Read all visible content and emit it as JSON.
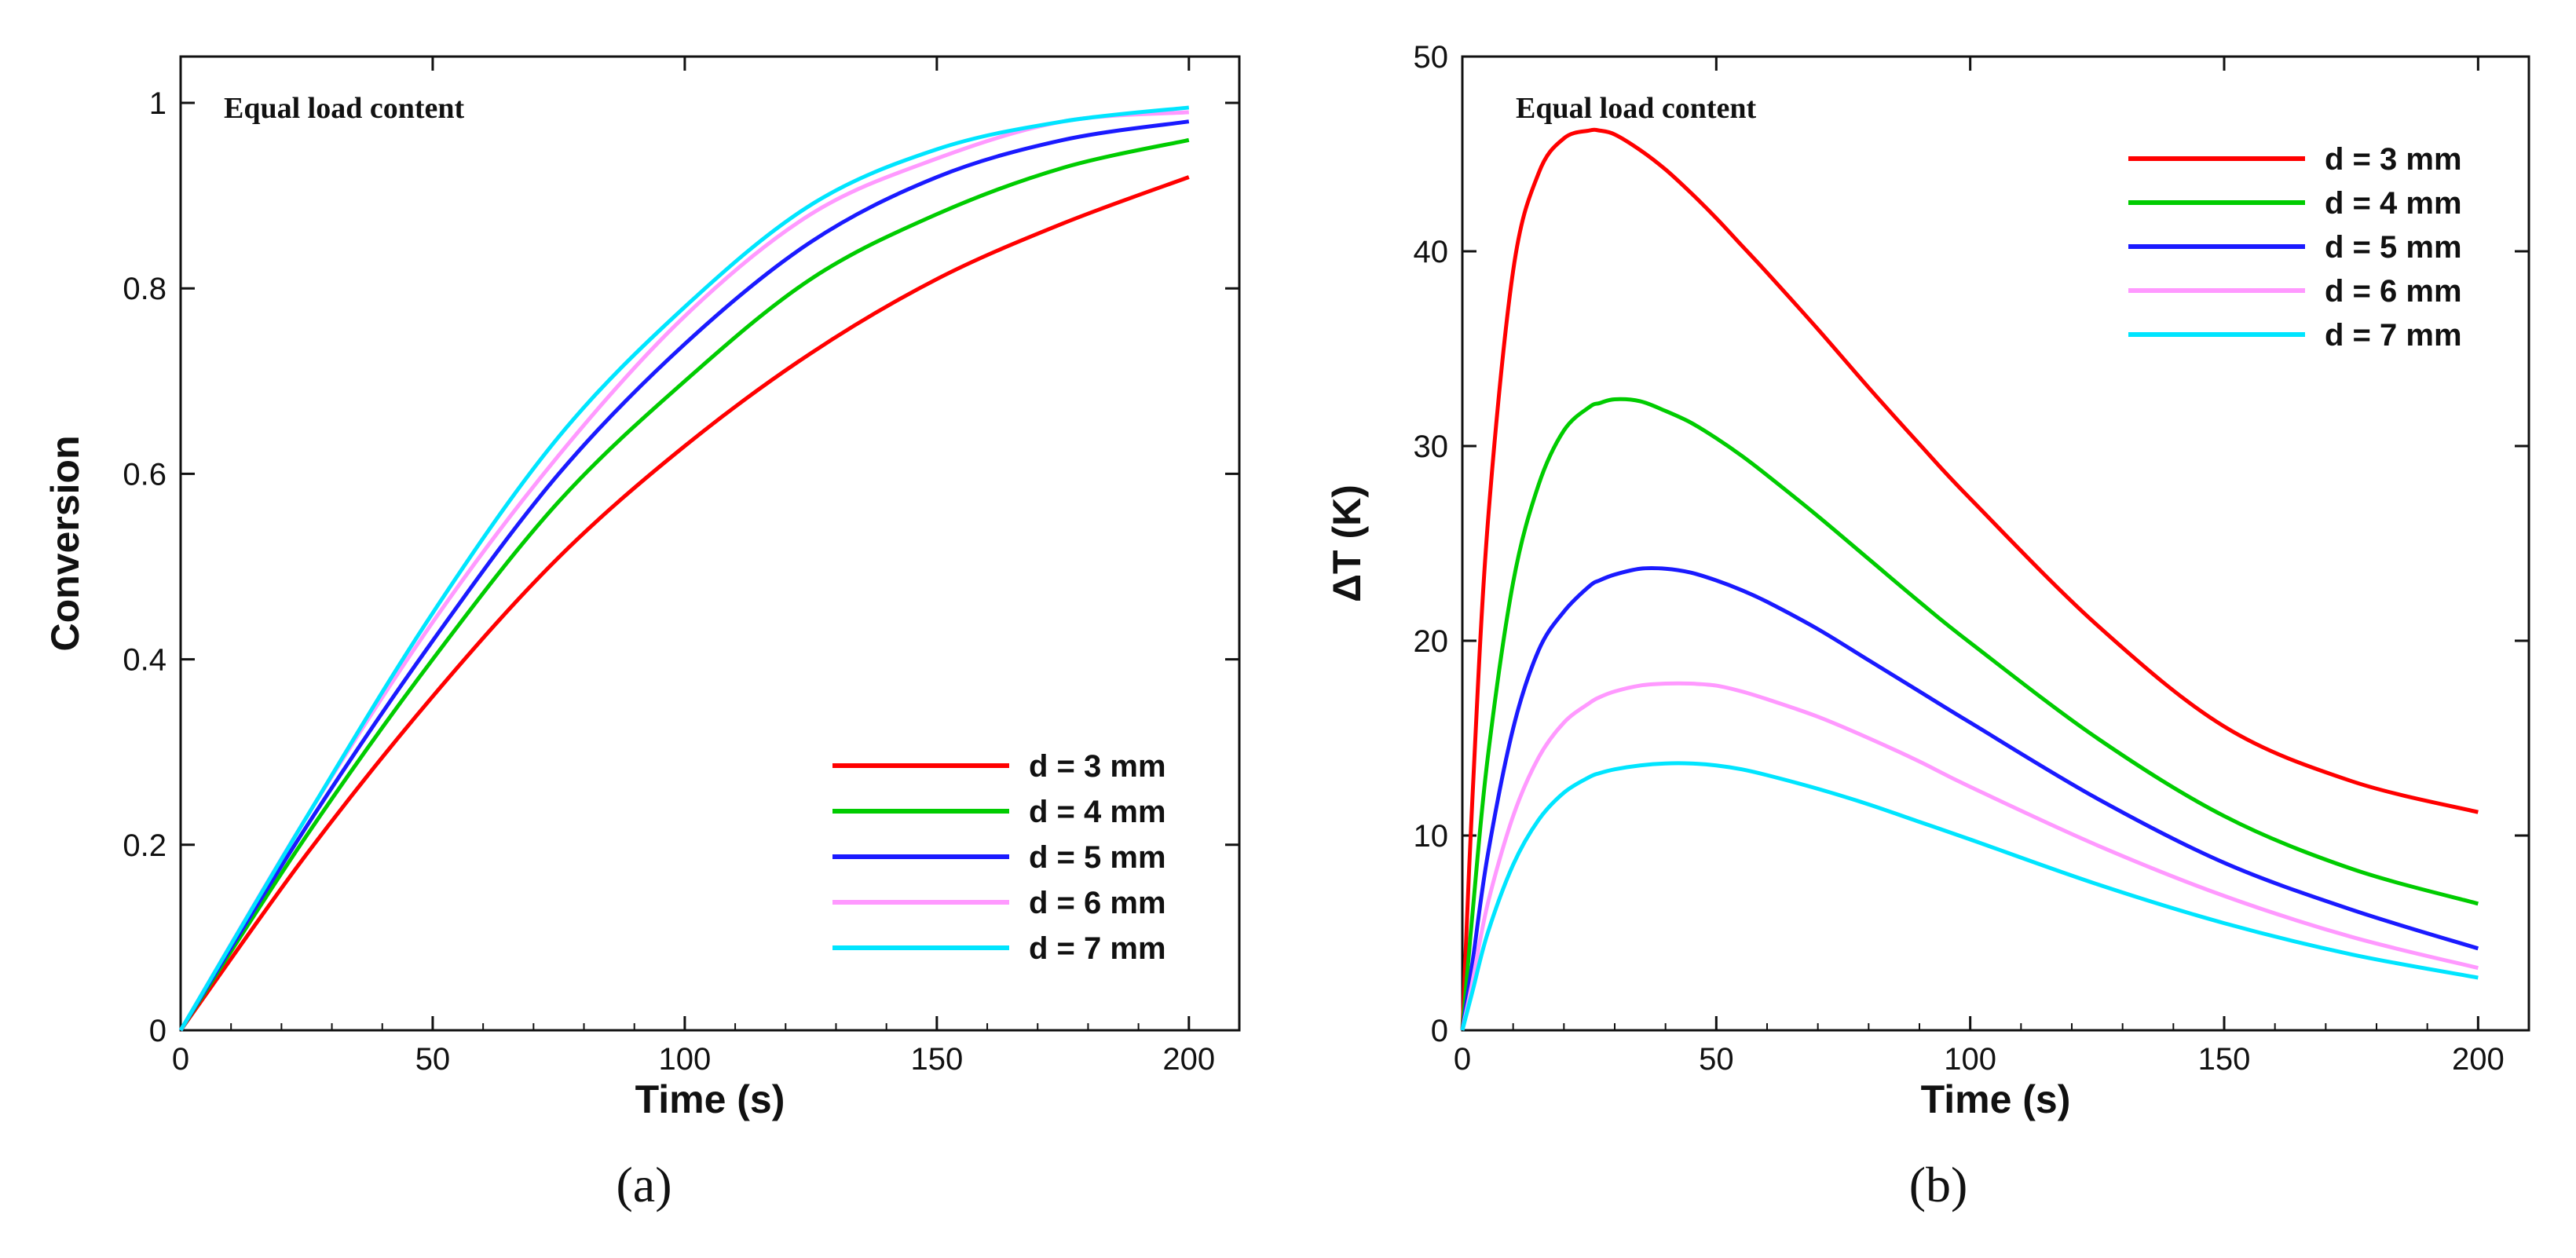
{
  "colors": {
    "d3": "#ff0000",
    "d4": "#00cc00",
    "d5": "#1a1aff",
    "d6": "#ff99ff",
    "d7": "#00e5ff",
    "axis": "#111111"
  },
  "chart_data": [
    {
      "id": "a",
      "type": "line",
      "caption": "(a)",
      "annotation": "Equal load content",
      "xlabel": "Time (s)",
      "ylabel": "Conversion",
      "xlim": [
        0,
        210
      ],
      "ylim": [
        0,
        1.05
      ],
      "xticks": [
        0,
        50,
        100,
        150,
        200
      ],
      "xtick_labels": [
        "0",
        "50",
        "100",
        "150",
        "200"
      ],
      "yticks": [
        0,
        0.2,
        0.4,
        0.6,
        0.8,
        1
      ],
      "ytick_labels": [
        "0",
        "0.2",
        "0.4",
        "0.6",
        "0.8",
        "1"
      ],
      "legend_position": "bottom-right",
      "x": [
        0,
        25,
        50,
        75,
        100,
        125,
        150,
        175,
        200
      ],
      "series": [
        {
          "name": "d = 3 mm",
          "color": "#ff0000",
          "values": [
            0,
            0.19,
            0.36,
            0.51,
            0.63,
            0.73,
            0.81,
            0.87,
            0.92
          ]
        },
        {
          "name": "d = 4 mm",
          "color": "#00cc00",
          "values": [
            0,
            0.21,
            0.4,
            0.57,
            0.7,
            0.81,
            0.88,
            0.93,
            0.96
          ]
        },
        {
          "name": "d = 5 mm",
          "color": "#1a1aff",
          "values": [
            0,
            0.22,
            0.42,
            0.6,
            0.74,
            0.85,
            0.92,
            0.96,
            0.98
          ]
        },
        {
          "name": "d = 6 mm",
          "color": "#ff99ff",
          "values": [
            0,
            0.23,
            0.44,
            0.62,
            0.77,
            0.88,
            0.94,
            0.98,
            0.99
          ]
        },
        {
          "name": "d = 7 mm",
          "color": "#00e5ff",
          "values": [
            0,
            0.23,
            0.45,
            0.64,
            0.78,
            0.89,
            0.95,
            0.98,
            0.995
          ]
        }
      ]
    },
    {
      "id": "b",
      "type": "line",
      "caption": "(b)",
      "annotation": "Equal load content",
      "xlabel": "Time (s)",
      "ylabel": "ΔT (K)",
      "xlim": [
        0,
        210
      ],
      "ylim": [
        0,
        50
      ],
      "xticks": [
        0,
        50,
        100,
        150,
        200
      ],
      "xtick_labels": [
        "0",
        "50",
        "100",
        "150",
        "200"
      ],
      "yticks": [
        0,
        10,
        20,
        30,
        40,
        50
      ],
      "ytick_labels": [
        "0",
        "10",
        "20",
        "30",
        "40",
        "50"
      ],
      "legend_position": "top-right",
      "x": [
        0,
        2,
        5,
        10,
        15,
        20,
        25,
        27,
        30,
        35,
        40,
        45,
        50,
        55,
        60,
        70,
        80,
        90,
        100,
        125,
        150,
        175,
        200
      ],
      "series": [
        {
          "name": "d = 3 mm",
          "color": "#ff0000",
          "values": [
            0,
            12,
            26,
            39,
            44,
            45.8,
            46.2,
            46.2,
            46.0,
            45.2,
            44.2,
            43.0,
            41.7,
            40.3,
            38.9,
            36.0,
            33.0,
            30.1,
            27.3,
            20.8,
            15.6,
            12.8,
            11.2
          ]
        },
        {
          "name": "d = 4 mm",
          "color": "#00cc00",
          "values": [
            0,
            6,
            14,
            23,
            28,
            30.8,
            32.0,
            32.2,
            32.4,
            32.3,
            31.8,
            31.2,
            30.4,
            29.5,
            28.5,
            26.4,
            24.2,
            22.0,
            19.9,
            15.0,
            11.0,
            8.3,
            6.5
          ]
        },
        {
          "name": "d = 5 mm",
          "color": "#1a1aff",
          "values": [
            0,
            3.5,
            9,
            15.5,
            19.5,
            21.5,
            22.8,
            23.1,
            23.4,
            23.7,
            23.7,
            23.5,
            23.1,
            22.6,
            22.0,
            20.6,
            19.0,
            17.4,
            15.8,
            11.9,
            8.6,
            6.2,
            4.2
          ]
        },
        {
          "name": "d = 6 mm",
          "color": "#ff99ff",
          "values": [
            0,
            2.5,
            6.5,
            11,
            14,
            15.8,
            16.8,
            17.1,
            17.4,
            17.7,
            17.8,
            17.8,
            17.7,
            17.4,
            17.0,
            16.1,
            15.0,
            13.8,
            12.5,
            9.5,
            6.9,
            4.8,
            3.2
          ]
        },
        {
          "name": "d = 7 mm",
          "color": "#00e5ff",
          "values": [
            0,
            2,
            5,
            8.5,
            10.8,
            12.2,
            13.0,
            13.2,
            13.4,
            13.6,
            13.7,
            13.7,
            13.6,
            13.4,
            13.1,
            12.4,
            11.6,
            10.7,
            9.8,
            7.5,
            5.5,
            3.9,
            2.7
          ]
        }
      ]
    }
  ]
}
